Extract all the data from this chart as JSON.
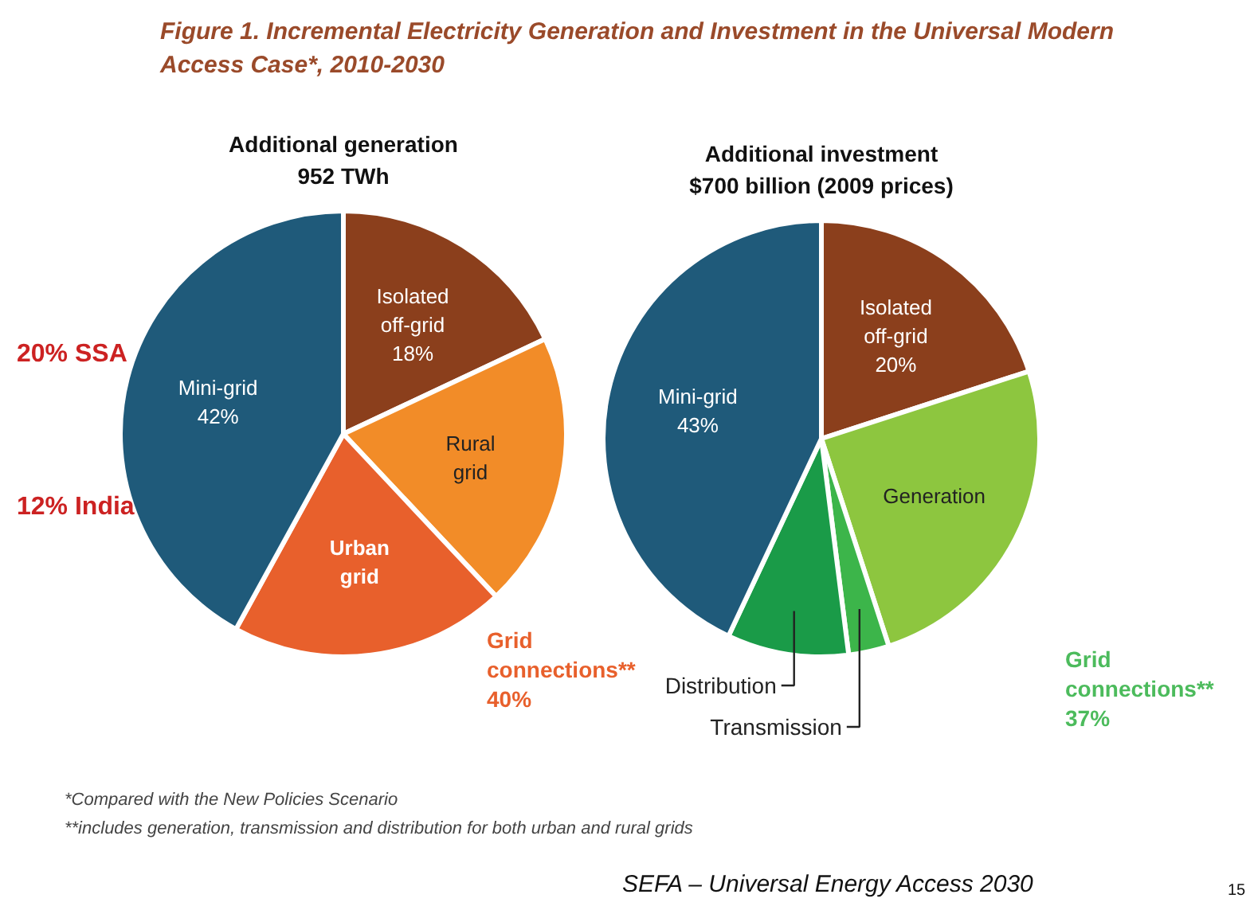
{
  "chart_data": [
    {
      "type": "pie",
      "title": "Additional generation",
      "subtitle": "952 TWh",
      "categories": [
        "Isolated\noff-grid",
        "Rural\ngrid",
        "Urban\ngrid",
        "Mini-grid"
      ],
      "values": [
        18,
        20,
        20,
        42
      ],
      "value_labels": [
        "18%",
        null,
        null,
        "42%"
      ],
      "colors": [
        "#8b3f1c",
        "#f28c28",
        "#e8602c",
        "#1f5a7a"
      ],
      "annotations": [
        "Figure 1. Incremental Electricity Generation and Investment in the Universal Modern\nAccess Case*, 2010-2030",
        "Grid\nconnections**\n40%",
        "20% SSA",
        "12% India",
        "*Compared with the New Policies Scenario",
        "**includes generation, transmission and distribution for both urban and rural grids",
        "SEFA – Universal Energy Access 2030",
        "15"
      ]
    },
    {
      "type": "pie",
      "title": "Additional investment",
      "subtitle": "$700 billion (2009 prices)",
      "categories": [
        "Isolated\noff-grid",
        "Generation",
        "Transmission",
        "Distribution",
        "Mini-grid"
      ],
      "values": [
        20,
        25,
        3,
        9,
        43
      ],
      "value_labels": [
        "20%",
        null,
        null,
        null,
        "43%"
      ],
      "colors": [
        "#8b3f1c",
        "#8dc63f",
        "#3cb54a",
        "#1a9b48",
        "#1f5a7a"
      ],
      "annotations": [
        "Grid\nconnections**\n37%"
      ]
    }
  ]
}
